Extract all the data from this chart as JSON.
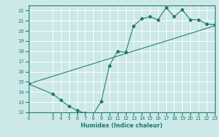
{
  "title": "",
  "xlabel": "Humidex (Indice chaleur)",
  "ylabel": "",
  "bg_color": "#cce8e8",
  "grid_color": "#ffffff",
  "line_color": "#1a7a6a",
  "xlim": [
    0,
    23
  ],
  "ylim": [
    12,
    22.5
  ],
  "xticks": [
    0,
    3,
    4,
    5,
    6,
    7,
    8,
    9,
    10,
    11,
    12,
    13,
    14,
    15,
    16,
    17,
    18,
    19,
    20,
    21,
    22,
    23
  ],
  "yticks": [
    12,
    13,
    14,
    15,
    16,
    17,
    18,
    19,
    20,
    21,
    22
  ],
  "curve1_x": [
    0,
    3,
    4,
    5,
    6,
    7,
    8,
    9,
    10,
    11,
    12,
    13,
    14,
    15,
    16,
    17,
    18,
    19,
    20,
    21,
    22,
    23
  ],
  "curve1_y": [
    14.8,
    13.8,
    13.2,
    12.6,
    12.2,
    11.9,
    11.8,
    13.1,
    16.6,
    18.0,
    17.9,
    20.5,
    21.2,
    21.4,
    21.1,
    22.3,
    21.4,
    22.1,
    21.1,
    21.1,
    20.7,
    20.6
  ],
  "curve2_x": [
    0,
    23
  ],
  "curve2_y": [
    14.8,
    20.5
  ],
  "marker": "D",
  "markersize": 2.2,
  "linewidth": 0.8,
  "tick_fontsize": 5.0,
  "xlabel_fontsize": 6.0
}
